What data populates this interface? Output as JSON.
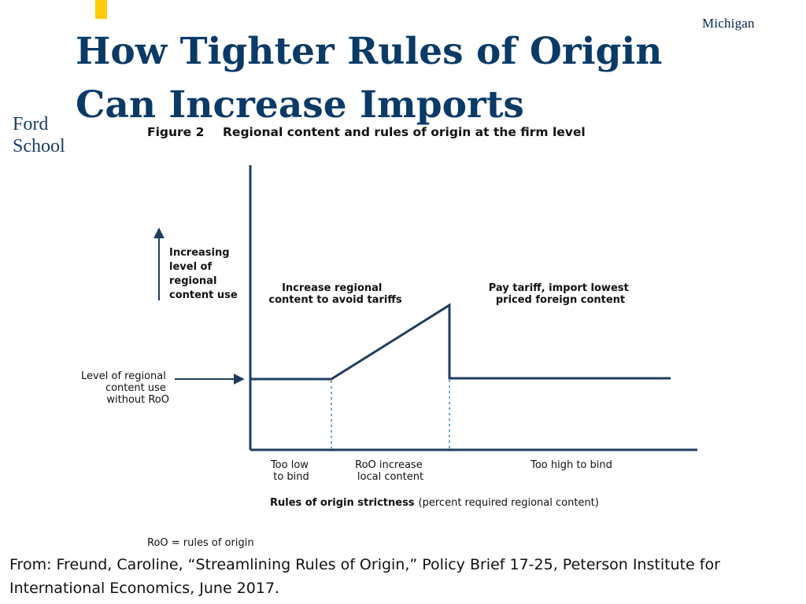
{
  "slide": {
    "title_line1": "How Tighter Rules of Origin",
    "title_line2": "Can Increase Imports",
    "brand_text": "Michigan",
    "school_fragment_line1": "Ford",
    "school_fragment_line2": "School",
    "source_text": "From:  Freund, Caroline, “Streamlining Rules of Origin,” Policy Brief 17-25, Peterson Institute for International Economics, June 2017.",
    "colors": {
      "title": "#0A3A66",
      "accent_gold": "#FFCB05",
      "brand_blue": "#00274C",
      "diagram_navy": "#1F3D5F",
      "dashed_guides": "#6FA6C9"
    }
  },
  "figure": {
    "number_label": "Figure 2",
    "title": "Regional content and rules of origin at the firm level",
    "y_axis_label_lines": [
      "Increasing",
      "level of",
      "regional",
      "content use"
    ],
    "baseline_label_lines": [
      "Level of regional",
      "content use",
      "without RoO"
    ],
    "region_left_annotation_lines": [
      "Increase regional",
      "content to avoid tariffs"
    ],
    "region_right_annotation_lines": [
      "Pay tariff, import lowest",
      "priced foreign content"
    ],
    "segment_labels": [
      {
        "lines": [
          "Too low",
          "to bind"
        ]
      },
      {
        "lines": [
          "RoO increase",
          "local content"
        ]
      },
      {
        "lines": [
          "Too high to bind"
        ]
      }
    ],
    "x_axis_label_bold": "Rules of origin strictness",
    "x_axis_label_rest": "(percent required regional content)",
    "footnote": "RoO = rules of origin"
  }
}
